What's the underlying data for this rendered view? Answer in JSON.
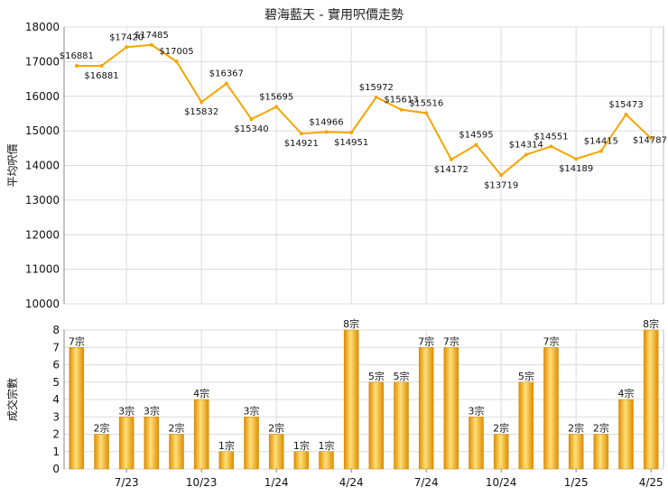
{
  "title": "碧海藍天 - 實用呎價走勢",
  "colors": {
    "line": "#f5a500",
    "bar_dark": "#e08e00",
    "bar_light": "#ffe07a",
    "grid": "#dcdcdc"
  },
  "chart_data": [
    {
      "type": "line",
      "ylabel": "平均呎價",
      "ylim": [
        10000,
        18000
      ],
      "yticks": [
        10000,
        11000,
        12000,
        13000,
        14000,
        15000,
        16000,
        17000,
        18000
      ],
      "grid": true,
      "series": [
        {
          "values": [
            16881,
            16881,
            17420,
            17485,
            17005,
            15832,
            16367,
            15340,
            15695,
            14921,
            14966,
            14951,
            15972,
            15613,
            15516,
            14172,
            14595,
            13719,
            14314,
            14551,
            14189,
            14415,
            15473,
            14787
          ],
          "labels": [
            "$16881",
            "$16881",
            "$17420",
            "$17485",
            "$17005",
            "$15832",
            "$16367",
            "$15340",
            "$15695",
            "$14921",
            "$14966",
            "$14951",
            "$15972",
            "$15613",
            "$15516",
            "$14172",
            "$14595",
            "$13719",
            "$14314",
            "$14551",
            "$14189",
            "$14415",
            "$15473",
            "$14787"
          ]
        }
      ]
    },
    {
      "type": "bar",
      "ylabel": "成交宗數",
      "ylim": [
        0,
        8
      ],
      "yticks": [
        0,
        1,
        2,
        3,
        4,
        5,
        6,
        7,
        8
      ],
      "grid": true,
      "xtick_labels": [
        {
          "label": "7/23",
          "index": 2
        },
        {
          "label": "10/23",
          "index": 5
        },
        {
          "label": "1/24",
          "index": 8
        },
        {
          "label": "4/24",
          "index": 11
        },
        {
          "label": "7/24",
          "index": 14
        },
        {
          "label": "10/24",
          "index": 17
        },
        {
          "label": "1/25",
          "index": 20
        },
        {
          "label": "4/25",
          "index": 23
        }
      ],
      "values": [
        7,
        2,
        3,
        3,
        2,
        4,
        1,
        3,
        2,
        1,
        1,
        8,
        5,
        5,
        7,
        7,
        3,
        2,
        5,
        7,
        2,
        2,
        4,
        8
      ],
      "labels": [
        "7宗",
        "2宗",
        "3宗",
        "3宗",
        "2宗",
        "4宗",
        "1宗",
        "3宗",
        "2宗",
        "1宗",
        "1宗",
        "8宗",
        "5宗",
        "5宗",
        "7宗",
        "7宗",
        "3宗",
        "2宗",
        "5宗",
        "7宗",
        "2宗",
        "2宗",
        "4宗",
        "8宗"
      ]
    }
  ]
}
